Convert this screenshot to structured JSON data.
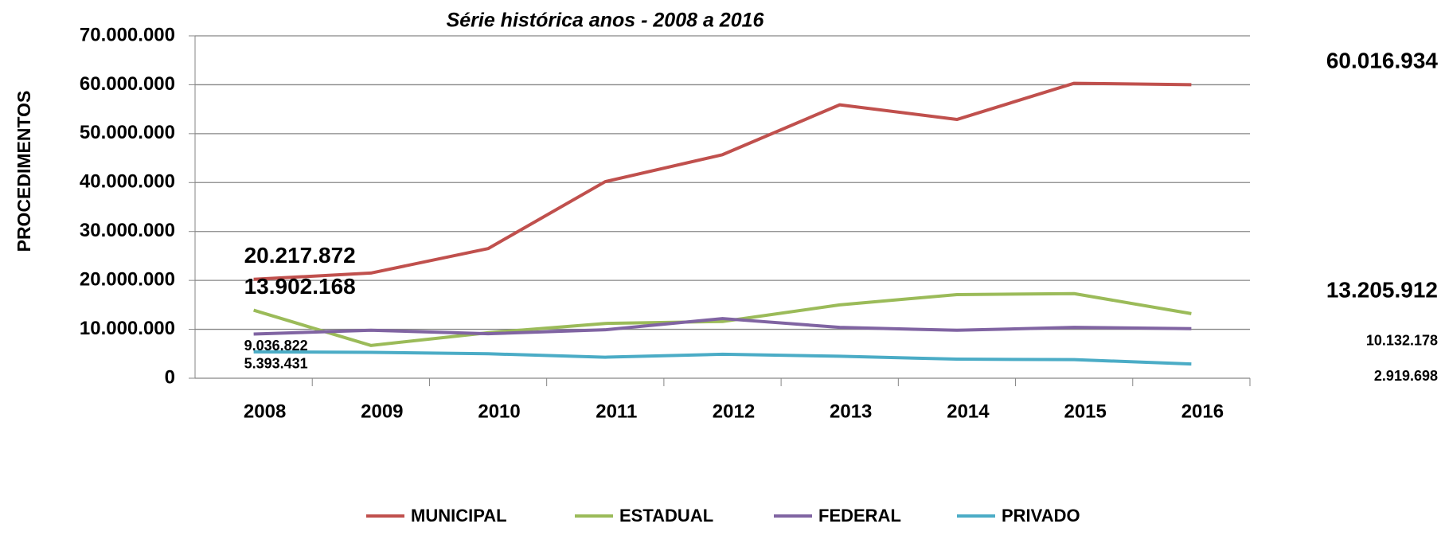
{
  "chart_data": {
    "type": "line",
    "title": "Série histórica anos -  2008 a 2016",
    "y_label": "PROCEDIMENTOS",
    "categories": [
      "2008",
      "2009",
      "2010",
      "2011",
      "2012",
      "2013",
      "2014",
      "2015",
      "2016"
    ],
    "series": [
      {
        "name": "MUNICIPAL",
        "color": "#c0504d",
        "values": [
          20217872,
          21500000,
          26500000,
          40200000,
          45700000,
          55900000,
          52900000,
          60300000,
          60016934
        ],
        "value_labels": [
          "20.217.872",
          null,
          null,
          null,
          null,
          null,
          null,
          null,
          "60.016.934"
        ]
      },
      {
        "name": "ESTADUAL",
        "color": "#9bbb59",
        "values": [
          13902168,
          6700000,
          9300000,
          11200000,
          11600000,
          15000000,
          17100000,
          17300000,
          13205912
        ],
        "value_labels": [
          "13.902.168",
          null,
          null,
          null,
          null,
          null,
          null,
          null,
          "13.205.912"
        ]
      },
      {
        "name": "FEDERAL",
        "color": "#8064a2",
        "values": [
          9036822,
          9800000,
          9100000,
          9900000,
          12200000,
          10400000,
          9800000,
          10400000,
          10132178
        ],
        "value_labels": [
          "9.036.822",
          null,
          null,
          null,
          null,
          null,
          null,
          null,
          "10.132.178"
        ]
      },
      {
        "name": "PRIVADO",
        "color": "#4bacc6",
        "values": [
          5393431,
          5300000,
          5000000,
          4300000,
          4900000,
          4500000,
          3900000,
          3800000,
          2919698
        ],
        "value_labels": [
          "5.393.431",
          null,
          null,
          null,
          null,
          null,
          null,
          null,
          "2.919.698"
        ]
      }
    ],
    "ylim": [
      0,
      70000000
    ],
    "yticks": [
      0,
      {
        "value": 10000000,
        "label": "10.000.000"
      },
      {
        "value": 20000000,
        "label": "20.000.000"
      },
      {
        "value": 30000000,
        "label": "30.000.000"
      },
      {
        "value": 40000000,
        "label": "40.000.000"
      },
      {
        "value": 50000000,
        "label": "50.000.000"
      },
      {
        "value": 60000000,
        "label": "60.000.000"
      },
      {
        "value": 70000000,
        "label": "70.000.000"
      }
    ],
    "grid": true,
    "legend": "bottom"
  }
}
